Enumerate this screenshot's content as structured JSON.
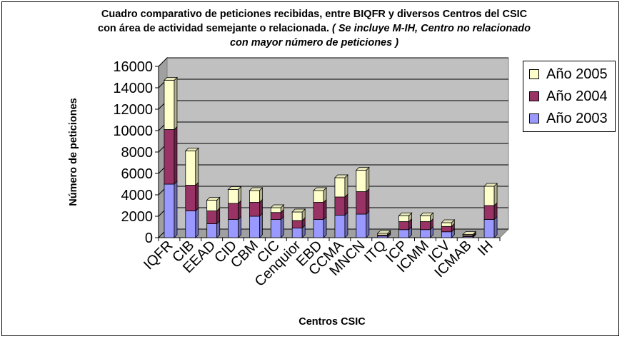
{
  "chart_data": {
    "type": "bar",
    "stacked": true,
    "title_line1": "Cuadro comparativo de peticiones recibidas, entre BIQFR y diversos Centros del CSIC",
    "title_line2_bold": "con área de actividad semejante o relacionada. ",
    "title_line2_italic": "( Se incluye M-IH, Centro no relacionado",
    "title_line3_italic": "con mayor número de peticiones )",
    "xlabel": "Centros CSIC",
    "ylabel": "Número de peticiones",
    "ylim": [
      0,
      16000
    ],
    "yticks": [
      "0",
      "2000",
      "4000",
      "6000",
      "8000",
      "10000",
      "12000",
      "14000",
      "16000"
    ],
    "categories": [
      "IQFR",
      "CIB",
      "EEAD",
      "CID",
      "CBM",
      "CIC",
      "Cenquior",
      "EBD",
      "CCMA",
      "MNCN",
      "ITQ",
      "ICP",
      "ICMM",
      "ICV",
      "ICMAB",
      "IH"
    ],
    "series": [
      {
        "name": "Año 2003",
        "color": "#9999ff",
        "values": [
          5000,
          2500,
          1300,
          1700,
          2000,
          1700,
          900,
          1700,
          2100,
          2200,
          150,
          750,
          750,
          550,
          100,
          1700
        ]
      },
      {
        "name": "Año 2004",
        "color": "#993366",
        "values": [
          5100,
          2400,
          1200,
          1500,
          1300,
          650,
          700,
          1600,
          1700,
          2100,
          100,
          750,
          750,
          500,
          100,
          1300
        ]
      },
      {
        "name": "Año 2005",
        "color": "#ffffcc",
        "values": [
          4600,
          3200,
          1000,
          1300,
          1100,
          450,
          800,
          1100,
          1800,
          2000,
          150,
          550,
          550,
          350,
          100,
          1800
        ]
      }
    ],
    "legend_position": "right",
    "grid": true,
    "plot_background": "#c0c0c0"
  }
}
